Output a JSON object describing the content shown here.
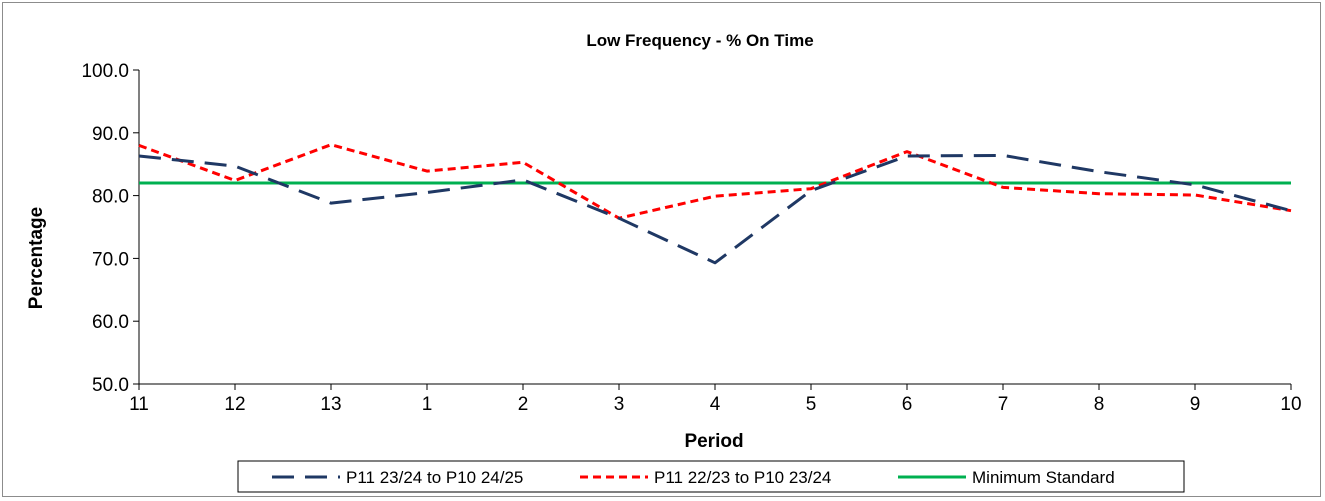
{
  "chart_data": {
    "type": "line",
    "title": "Low Frequency - % On Time",
    "xlabel": "Period",
    "ylabel": "Percentage",
    "categories": [
      "11",
      "12",
      "13",
      "1",
      "2",
      "3",
      "4",
      "5",
      "6",
      "7",
      "8",
      "9",
      "10"
    ],
    "ylim": [
      50,
      100
    ],
    "yticks": [
      "50.0",
      "60.0",
      "70.0",
      "80.0",
      "90.0",
      "100.0"
    ],
    "grid": false,
    "legend_position": "bottom",
    "series": [
      {
        "name": "P11 23/24 to P10 24/25",
        "color": "#1f3864",
        "style": "long-dash",
        "values": [
          86.3,
          84.7,
          78.8,
          80.5,
          82.5,
          76.4,
          69.3,
          80.8,
          86.3,
          86.4,
          83.8,
          81.7,
          77.6
        ]
      },
      {
        "name": "P11 22/23 to P10 23/24",
        "color": "#ff0000",
        "style": "short-dash",
        "values": [
          88.0,
          82.4,
          88.1,
          83.9,
          85.3,
          76.4,
          79.9,
          81.1,
          87.0,
          81.3,
          80.3,
          80.1,
          77.6
        ]
      },
      {
        "name": "Minimum Standard",
        "color": "#00b050",
        "style": "solid",
        "values": [
          82.0,
          82.0,
          82.0,
          82.0,
          82.0,
          82.0,
          82.0,
          82.0,
          82.0,
          82.0,
          82.0,
          82.0,
          82.0
        ]
      }
    ]
  }
}
